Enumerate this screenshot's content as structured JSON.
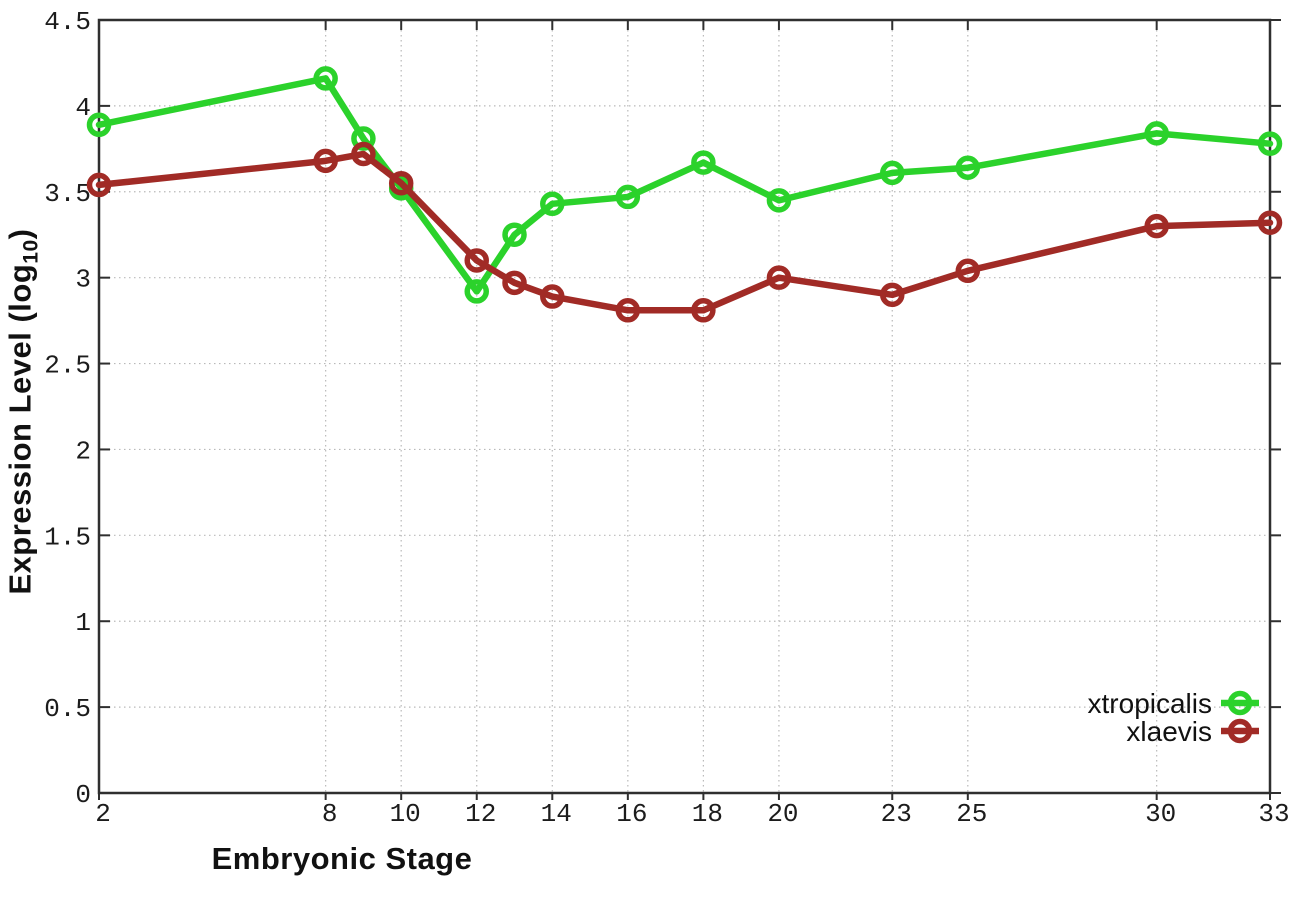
{
  "chart_data": {
    "type": "line",
    "title": "",
    "xlabel": "Embryonic Stage",
    "ylabel": "Expression Level (log10)",
    "ylabel_prefix": "Expression Level (log",
    "ylabel_sub": "10",
    "ylabel_suffix": ")",
    "x": [
      2,
      8,
      9,
      10,
      12,
      13,
      14,
      16,
      18,
      20,
      23,
      25,
      30,
      33
    ],
    "series": [
      {
        "name": "xtropicalis",
        "color": "#2bd22b",
        "values": [
          3.89,
          4.16,
          3.81,
          3.52,
          2.92,
          3.25,
          3.43,
          3.47,
          3.67,
          3.45,
          3.61,
          3.64,
          3.84,
          3.78
        ]
      },
      {
        "name": "xlaevis",
        "color": "#a12b26",
        "values": [
          3.54,
          3.68,
          3.72,
          3.55,
          3.1,
          2.97,
          2.89,
          2.81,
          2.81,
          3.0,
          2.9,
          3.04,
          3.3,
          3.32
        ]
      }
    ],
    "xlim": [
      2,
      33
    ],
    "ylim": [
      0,
      4.5
    ],
    "xtick_labels": [
      "2",
      "8",
      "10",
      "12",
      "14",
      "16",
      "18",
      "20",
      "23",
      "25",
      "30",
      "33"
    ],
    "xtick_values": [
      2,
      8,
      10,
      12,
      14,
      16,
      18,
      20,
      23,
      25,
      30,
      33
    ],
    "ytick_labels": [
      "0",
      "0.5",
      "1",
      "1.5",
      "2",
      "2.5",
      "3",
      "3.5",
      "4",
      "4.5"
    ],
    "ytick_values": [
      0,
      0.5,
      1,
      1.5,
      2,
      2.5,
      3,
      3.5,
      4,
      4.5
    ],
    "grid": true,
    "grid_color": "#b9b9b9",
    "border_color": "#2f2f2f",
    "text_color": "#1c1c1c",
    "legend_position": "bottom-right",
    "legend_entries": [
      "xtropicalis",
      "xlaevis"
    ]
  }
}
